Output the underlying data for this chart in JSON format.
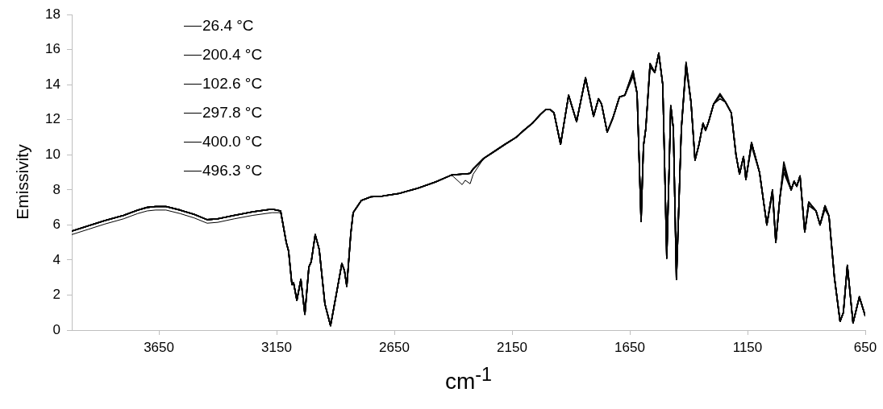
{
  "chart_data": {
    "type": "line",
    "xlabel": "cm$^{-1}$",
    "ylabel": "Emissivity",
    "legend": "top left",
    "xlim": [
      4020,
      650
    ],
    "xticks": [
      3650,
      3150,
      2650,
      2150,
      1650,
      1150,
      650
    ],
    "ylim": [
      0,
      18
    ],
    "yticks": [
      0,
      2,
      4,
      6,
      8,
      10,
      12,
      14,
      16,
      18
    ],
    "x": [
      4020,
      3950,
      3880,
      3800,
      3740,
      3700,
      3664,
      3620,
      3560,
      3500,
      3445,
      3400,
      3330,
      3250,
      3170,
      3133,
      3109,
      3099,
      3085,
      3078,
      3064,
      3047,
      3030,
      3013,
      3003,
      2986,
      2969,
      2945,
      2921,
      2893,
      2873,
      2862,
      2852,
      2835,
      2825,
      2790,
      2750,
      2700,
      2629,
      2550,
      2475,
      2407,
      2362,
      2349,
      2328,
      2315,
      2270,
      2225,
      2180,
      2133,
      2100,
      2064,
      2030,
      2006,
      1990,
      1972,
      1944,
      1910,
      1876,
      1838,
      1804,
      1783,
      1770,
      1746,
      1722,
      1694,
      1671,
      1636,
      1619,
      1602,
      1592,
      1582,
      1564,
      1544,
      1527,
      1510,
      1493,
      1476,
      1465,
      1452,
      1431,
      1411,
      1390,
      1373,
      1356,
      1339,
      1328,
      1315,
      1294,
      1267,
      1243,
      1219,
      1199,
      1184,
      1167,
      1157,
      1133,
      1099,
      1068,
      1044,
      1030,
      1013,
      996,
      965,
      952,
      941,
      927,
      907,
      890,
      859,
      842,
      821,
      804,
      781,
      757,
      743,
      726,
      702,
      675,
      650
    ],
    "series": [
      {
        "name": "26.4 °C",
        "color": "#000000",
        "values": [
          5.45,
          5.75,
          6.05,
          6.35,
          6.65,
          6.8,
          6.85,
          6.85,
          6.65,
          6.4,
          6.1,
          6.15,
          6.35,
          6.55,
          6.7,
          6.7,
          5.0,
          4.5,
          2.6,
          2.7,
          1.7,
          2.9,
          0.9,
          3.6,
          3.9,
          5.45,
          4.6,
          1.5,
          0.25,
          2.3,
          3.8,
          3.4,
          2.5,
          5.5,
          6.7,
          7.4,
          7.6,
          7.65,
          7.8,
          8.1,
          8.45,
          8.85,
          8.3,
          8.55,
          8.35,
          8.9,
          9.8,
          10.2,
          10.6,
          11.0,
          11.4,
          11.8,
          12.3,
          12.6,
          12.6,
          12.4,
          10.6,
          13.4,
          11.9,
          14.4,
          12.2,
          13.2,
          12.9,
          11.3,
          12.1,
          13.3,
          13.4,
          14.7,
          13.5,
          6.2,
          10.5,
          11.5,
          15.2,
          14.7,
          15.8,
          14.0,
          4.1,
          12.8,
          11.5,
          2.9,
          11.5,
          15.2,
          13.0,
          9.7,
          10.6,
          11.8,
          11.4,
          11.9,
          12.9,
          13.4,
          13.0,
          12.4,
          10.0,
          8.9,
          9.9,
          8.6,
          10.7,
          9.0,
          6.0,
          8.0,
          5.0,
          7.5,
          9.3,
          8.0,
          8.5,
          8.2,
          8.8,
          5.6,
          7.3,
          6.8,
          6.0,
          7.1,
          6.5,
          3.0,
          0.5,
          1.0,
          3.7,
          0.4,
          1.9,
          0.8
        ]
      },
      {
        "name": "200.4 °C",
        "color": "#000000",
        "values": [
          5.65,
          5.95,
          6.25,
          6.55,
          6.85,
          7.0,
          7.05,
          7.05,
          6.85,
          6.6,
          6.3,
          6.35,
          6.55,
          6.75,
          6.9,
          6.8,
          5.0,
          4.5,
          2.6,
          2.7,
          1.7,
          2.9,
          0.9,
          3.6,
          3.9,
          5.45,
          4.6,
          1.5,
          0.25,
          2.3,
          3.8,
          3.4,
          2.5,
          5.5,
          6.7,
          7.4,
          7.6,
          7.65,
          7.8,
          8.1,
          8.45,
          8.85,
          8.9,
          8.9,
          8.95,
          9.2,
          9.8,
          10.2,
          10.6,
          11.0,
          11.4,
          11.8,
          12.3,
          12.6,
          12.6,
          12.4,
          10.6,
          13.4,
          11.9,
          14.4,
          12.2,
          13.2,
          12.9,
          11.3,
          12.1,
          13.3,
          13.4,
          14.5,
          13.5,
          6.2,
          10.5,
          11.5,
          15.0,
          14.7,
          15.8,
          14.0,
          4.1,
          12.8,
          11.5,
          2.9,
          11.5,
          15.0,
          13.0,
          9.7,
          10.6,
          11.8,
          11.4,
          11.9,
          12.9,
          13.2,
          13.0,
          12.4,
          10.0,
          8.9,
          9.9,
          8.6,
          10.5,
          9.0,
          6.0,
          7.8,
          5.0,
          7.5,
          9.0,
          8.0,
          8.5,
          8.2,
          8.8,
          5.6,
          7.1,
          6.8,
          6.0,
          6.9,
          6.5,
          3.0,
          0.5,
          1.0,
          3.7,
          0.4,
          1.9,
          0.8
        ]
      },
      {
        "name": "102.6 °C",
        "color": "#000000",
        "values": [
          5.65,
          5.95,
          6.25,
          6.55,
          6.85,
          7.0,
          7.05,
          7.05,
          6.85,
          6.6,
          6.3,
          6.35,
          6.55,
          6.75,
          6.9,
          6.8,
          5.0,
          4.5,
          2.6,
          2.7,
          1.7,
          2.9,
          0.9,
          3.6,
          3.9,
          5.45,
          4.6,
          1.5,
          0.25,
          2.3,
          3.8,
          3.4,
          2.5,
          5.5,
          6.7,
          7.4,
          7.6,
          7.65,
          7.8,
          8.1,
          8.45,
          8.85,
          8.9,
          8.9,
          8.95,
          9.2,
          9.8,
          10.2,
          10.6,
          11.0,
          11.4,
          11.8,
          12.3,
          12.6,
          12.6,
          12.4,
          10.6,
          13.4,
          11.9,
          14.4,
          12.2,
          13.2,
          12.9,
          11.3,
          12.1,
          13.3,
          13.4,
          14.8,
          13.5,
          6.2,
          10.5,
          11.5,
          15.2,
          14.7,
          15.8,
          14.0,
          4.1,
          12.8,
          11.5,
          2.9,
          11.5,
          15.3,
          13.0,
          9.7,
          10.6,
          11.8,
          11.4,
          11.9,
          12.9,
          13.4,
          13.0,
          12.4,
          10.0,
          8.9,
          9.9,
          8.6,
          10.7,
          9.0,
          6.0,
          8.0,
          5.0,
          7.5,
          9.6,
          8.0,
          8.5,
          8.2,
          8.8,
          5.6,
          7.3,
          6.8,
          6.0,
          7.1,
          6.5,
          3.0,
          0.5,
          1.0,
          3.7,
          0.4,
          1.9,
          0.8
        ]
      },
      {
        "name": "297.8 °C",
        "color": "#000000",
        "values": [
          5.65,
          5.95,
          6.25,
          6.55,
          6.85,
          7.0,
          7.05,
          7.05,
          6.85,
          6.6,
          6.3,
          6.35,
          6.55,
          6.75,
          6.9,
          6.8,
          5.0,
          4.5,
          2.6,
          2.7,
          1.7,
          2.9,
          0.9,
          3.6,
          3.9,
          5.45,
          4.6,
          1.5,
          0.25,
          2.3,
          3.8,
          3.4,
          2.5,
          5.5,
          6.7,
          7.4,
          7.6,
          7.65,
          7.8,
          8.1,
          8.45,
          8.85,
          8.9,
          8.9,
          8.95,
          9.2,
          9.8,
          10.2,
          10.6,
          11.0,
          11.4,
          11.8,
          12.3,
          12.6,
          12.6,
          12.4,
          10.6,
          13.4,
          11.9,
          14.4,
          12.2,
          13.2,
          12.9,
          11.3,
          12.1,
          13.3,
          13.4,
          14.7,
          13.5,
          6.2,
          10.5,
          11.5,
          15.2,
          14.7,
          15.8,
          14.0,
          4.1,
          12.8,
          11.5,
          2.9,
          11.5,
          15.2,
          13.0,
          9.7,
          10.6,
          11.8,
          11.4,
          11.9,
          12.9,
          13.4,
          13.0,
          12.4,
          10.0,
          8.9,
          9.9,
          8.6,
          10.7,
          9.0,
          6.0,
          8.0,
          5.0,
          7.5,
          9.3,
          8.0,
          8.5,
          8.2,
          8.8,
          5.6,
          7.3,
          6.8,
          6.0,
          7.1,
          6.5,
          3.0,
          0.5,
          1.0,
          3.7,
          0.4,
          1.9,
          0.8
        ]
      },
      {
        "name": "400.0 °C",
        "color": "#000000",
        "values": [
          5.65,
          5.95,
          6.25,
          6.55,
          6.85,
          7.0,
          7.05,
          7.05,
          6.85,
          6.6,
          6.3,
          6.35,
          6.55,
          6.75,
          6.9,
          6.8,
          5.0,
          4.5,
          2.6,
          2.7,
          1.7,
          2.9,
          0.9,
          3.6,
          3.9,
          5.45,
          4.6,
          1.5,
          0.25,
          2.3,
          3.8,
          3.4,
          2.5,
          5.5,
          6.7,
          7.4,
          7.6,
          7.65,
          7.8,
          8.1,
          8.45,
          8.85,
          8.9,
          8.9,
          8.95,
          9.2,
          9.8,
          10.2,
          10.6,
          11.0,
          11.4,
          11.8,
          12.3,
          12.6,
          12.6,
          12.4,
          10.6,
          13.4,
          11.9,
          14.4,
          12.2,
          13.2,
          12.9,
          11.3,
          12.1,
          13.3,
          13.4,
          14.7,
          13.5,
          6.2,
          10.5,
          11.5,
          15.2,
          14.7,
          15.8,
          14.0,
          4.1,
          12.8,
          11.5,
          2.9,
          11.5,
          15.2,
          13.0,
          9.7,
          10.6,
          11.8,
          11.4,
          11.9,
          12.9,
          13.5,
          13.0,
          12.4,
          10.0,
          8.9,
          9.9,
          8.6,
          10.7,
          9.0,
          6.0,
          8.0,
          5.0,
          7.5,
          9.3,
          8.0,
          8.5,
          8.2,
          8.8,
          5.6,
          7.3,
          6.8,
          6.0,
          7.1,
          6.5,
          3.0,
          0.5,
          1.0,
          3.7,
          0.4,
          1.9,
          0.8
        ]
      },
      {
        "name": "496.3 °C",
        "color": "#000000",
        "values": [
          5.65,
          5.95,
          6.25,
          6.55,
          6.85,
          7.0,
          7.05,
          7.05,
          6.85,
          6.6,
          6.3,
          6.35,
          6.55,
          6.75,
          6.9,
          6.8,
          5.0,
          4.5,
          2.6,
          2.7,
          1.7,
          2.9,
          0.9,
          3.6,
          3.9,
          5.45,
          4.6,
          1.5,
          0.25,
          2.3,
          3.8,
          3.4,
          2.5,
          5.5,
          6.7,
          7.4,
          7.6,
          7.65,
          7.8,
          8.1,
          8.45,
          8.85,
          8.9,
          8.9,
          8.95,
          9.2,
          9.8,
          10.2,
          10.6,
          11.0,
          11.4,
          11.8,
          12.3,
          12.6,
          12.6,
          12.4,
          10.6,
          13.4,
          11.9,
          14.4,
          12.2,
          13.2,
          12.9,
          11.3,
          12.1,
          13.3,
          13.4,
          14.7,
          13.5,
          6.2,
          10.5,
          11.5,
          15.2,
          14.7,
          15.8,
          14.0,
          4.1,
          12.8,
          11.5,
          2.9,
          11.5,
          15.2,
          13.0,
          9.7,
          10.6,
          11.8,
          11.4,
          11.9,
          12.9,
          13.4,
          13.0,
          12.4,
          10.0,
          8.9,
          9.9,
          8.6,
          10.7,
          9.0,
          6.0,
          8.0,
          5.0,
          7.5,
          9.3,
          8.0,
          8.5,
          8.2,
          8.8,
          5.6,
          7.3,
          6.8,
          6.0,
          7.1,
          6.5,
          3.0,
          0.5,
          1.0,
          3.7,
          0.4,
          1.9,
          0.8
        ]
      }
    ]
  }
}
